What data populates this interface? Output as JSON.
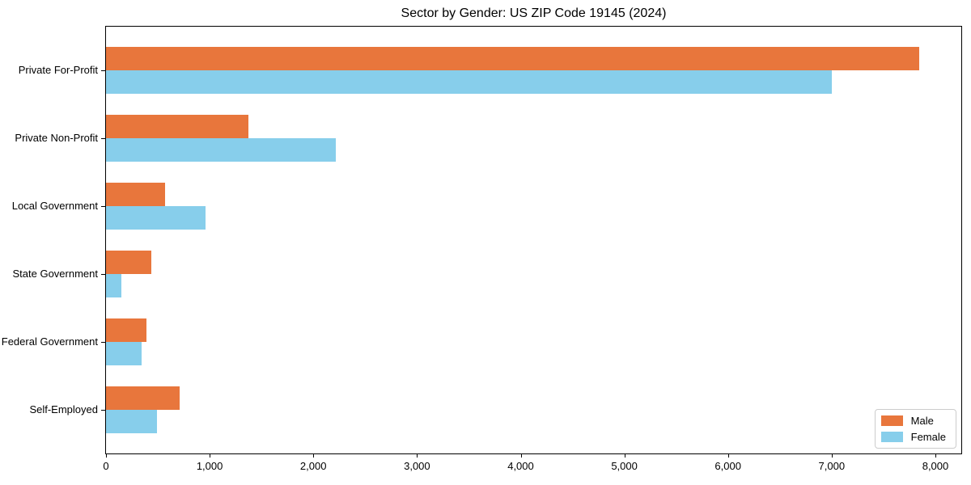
{
  "chart_data": {
    "type": "bar",
    "orientation": "horizontal",
    "title": "Sector by Gender: US ZIP Code 19145 (2024)",
    "categories": [
      "Private For-Profit",
      "Private Non-Profit",
      "Local Government",
      "State Government",
      "Federal Government",
      "Self-Employed"
    ],
    "series": [
      {
        "name": "Male",
        "color": "#E8763C",
        "values": [
          7840,
          1370,
          570,
          435,
          390,
          710
        ]
      },
      {
        "name": "Female",
        "color": "#87CEEB",
        "values": [
          7000,
          2220,
          960,
          150,
          345,
          490
        ]
      }
    ],
    "xlabel": "",
    "ylabel": "",
    "xlim": [
      0,
      8250
    ],
    "x_ticks": [
      0,
      1000,
      2000,
      3000,
      4000,
      5000,
      6000,
      7000,
      8000
    ],
    "x_tick_labels": [
      "0",
      "1,000",
      "2,000",
      "3,000",
      "4,000",
      "5,000",
      "6,000",
      "7,000",
      "8,000"
    ],
    "grid": false,
    "legend_position": "lower right",
    "spine_color": "#000000",
    "legend_border_color": "#cccccc"
  }
}
